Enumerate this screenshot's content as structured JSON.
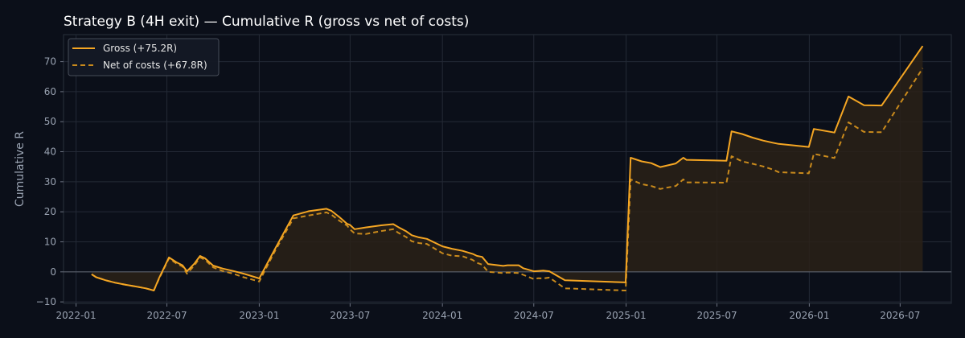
{
  "chart_data": {
    "type": "line",
    "title": "Strategy B (4H exit) — Cumulative R (gross vs net of costs)",
    "xlabel": "",
    "ylabel": "Cumulative R",
    "ylim": [
      -10.5,
      79
    ],
    "xlim": [
      "2021-12-07",
      "2026-10-11"
    ],
    "grid": true,
    "legend": "top-left",
    "yticks": [
      -10,
      0,
      10,
      20,
      30,
      40,
      50,
      60,
      70
    ],
    "xticks": [
      "2022-01",
      "2022-07",
      "2023-01",
      "2023-07",
      "2024-01",
      "2024-07",
      "2025-01",
      "2025-07",
      "2026-01",
      "2026-07"
    ],
    "colors": {
      "gross": "#f5a623",
      "net": "#c98a1c",
      "fill": "#2a2118",
      "zero_line": "#5a606c",
      "grid": "#242a36"
    },
    "series": [
      {
        "name": "Gross (+75.2R)",
        "style": "solid",
        "x": [
          "2022-02-01",
          "2022-02-10",
          "2022-03-01",
          "2022-03-20",
          "2022-04-10",
          "2022-05-01",
          "2022-05-20",
          "2022-06-05",
          "2022-06-15",
          "2022-07-05",
          "2022-07-20",
          "2022-08-01",
          "2022-08-10",
          "2022-08-25",
          "2022-09-05",
          "2022-09-15",
          "2022-10-01",
          "2022-10-20",
          "2022-11-10",
          "2022-12-01",
          "2023-01-01",
          "2023-02-01",
          "2023-03-10",
          "2023-04-10",
          "2023-05-15",
          "2023-05-25",
          "2023-06-10",
          "2023-06-25",
          "2023-07-01",
          "2023-07-10",
          "2023-08-01",
          "2023-09-01",
          "2023-09-25",
          "2023-10-05",
          "2023-10-20",
          "2023-11-01",
          "2023-11-15",
          "2023-12-01",
          "2024-01-01",
          "2024-01-20",
          "2024-02-10",
          "2024-03-01",
          "2024-03-10",
          "2024-03-20",
          "2024-04-01",
          "2024-05-01",
          "2024-05-10",
          "2024-06-01",
          "2024-06-10",
          "2024-07-01",
          "2024-07-10",
          "2024-07-20",
          "2024-08-01",
          "2024-09-01",
          "2024-12-31",
          "2025-01-10",
          "2025-02-01",
          "2025-02-20",
          "2025-03-10",
          "2025-04-10",
          "2025-04-25",
          "2025-05-01",
          "2025-07-20",
          "2025-07-30",
          "2025-08-20",
          "2025-09-10",
          "2025-10-01",
          "2025-10-20",
          "2025-11-01",
          "2025-12-31",
          "2026-01-10",
          "2026-02-20",
          "2026-03-20",
          "2026-04-20",
          "2026-05-25",
          "2026-08-15"
        ],
        "values": [
          -0.8,
          -1.8,
          -2.8,
          -3.6,
          -4.3,
          -4.9,
          -5.5,
          -6.2,
          -2.2,
          4.8,
          3.2,
          2.2,
          0.2,
          2.8,
          5.3,
          4.5,
          2.1,
          1.1,
          0.3,
          -0.6,
          -2.2,
          7.5,
          18.8,
          20.2,
          21.0,
          20.3,
          18.2,
          16.0,
          15.6,
          14.2,
          14.8,
          15.5,
          15.9,
          14.9,
          13.6,
          12.2,
          11.5,
          11.0,
          8.5,
          7.7,
          7.0,
          6.0,
          5.3,
          5.0,
          2.6,
          2.0,
          2.2,
          2.2,
          1.2,
          0.2,
          0.3,
          0.4,
          0.2,
          -2.8,
          -3.5,
          38.0,
          36.8,
          36.2,
          34.9,
          36.1,
          38.0,
          37.3,
          37.0,
          46.8,
          45.9,
          44.7,
          43.7,
          43.0,
          42.6,
          41.6,
          47.6,
          46.4,
          58.4,
          55.5,
          55.4,
          75.2
        ]
      },
      {
        "name": "Net of costs (+67.8R)",
        "style": "dashed",
        "x": [
          "2022-02-01",
          "2022-02-10",
          "2022-03-01",
          "2022-03-20",
          "2022-04-10",
          "2022-05-01",
          "2022-05-20",
          "2022-06-05",
          "2022-06-15",
          "2022-07-05",
          "2022-07-20",
          "2022-08-01",
          "2022-08-10",
          "2022-08-25",
          "2022-09-05",
          "2022-09-15",
          "2022-10-01",
          "2022-10-20",
          "2022-11-10",
          "2022-12-01",
          "2023-01-01",
          "2023-02-01",
          "2023-03-10",
          "2023-04-10",
          "2023-05-15",
          "2023-05-25",
          "2023-06-10",
          "2023-06-25",
          "2023-07-01",
          "2023-07-10",
          "2023-08-01",
          "2023-09-01",
          "2023-09-25",
          "2023-10-05",
          "2023-10-20",
          "2023-11-01",
          "2023-11-15",
          "2023-12-01",
          "2024-01-01",
          "2024-01-20",
          "2024-02-10",
          "2024-03-01",
          "2024-03-10",
          "2024-03-20",
          "2024-04-01",
          "2024-05-01",
          "2024-05-10",
          "2024-06-01",
          "2024-06-10",
          "2024-07-01",
          "2024-07-10",
          "2024-07-20",
          "2024-08-01",
          "2024-09-01",
          "2024-12-31",
          "2025-01-10",
          "2025-02-01",
          "2025-02-20",
          "2025-03-10",
          "2025-04-10",
          "2025-04-25",
          "2025-05-01",
          "2025-07-20",
          "2025-07-30",
          "2025-08-20",
          "2025-09-10",
          "2025-10-01",
          "2025-10-20",
          "2025-11-01",
          "2025-12-31",
          "2026-01-10",
          "2026-02-20",
          "2026-03-20",
          "2026-04-20",
          "2026-05-25",
          "2026-08-15"
        ],
        "values": [
          -0.8,
          -1.8,
          -2.8,
          -3.6,
          -4.3,
          -4.9,
          -5.5,
          -6.2,
          -2.4,
          4.5,
          2.8,
          1.8,
          -0.6,
          2.2,
          4.8,
          4.0,
          1.5,
          0.3,
          -0.6,
          -1.8,
          -3.2,
          6.8,
          17.8,
          18.8,
          19.8,
          19.0,
          17.0,
          15.4,
          14.1,
          12.8,
          12.6,
          13.6,
          14.2,
          13.0,
          11.7,
          10.2,
          9.6,
          9.3,
          6.2,
          5.4,
          5.2,
          4.0,
          3.0,
          2.4,
          0.0,
          -0.4,
          -0.2,
          -0.4,
          -1.0,
          -2.4,
          -2.1,
          -2.2,
          -1.9,
          -5.5,
          -6.2,
          30.8,
          29.2,
          28.6,
          27.6,
          28.6,
          30.8,
          29.8,
          29.7,
          38.5,
          36.8,
          36.0,
          35.1,
          34.1,
          33.2,
          32.8,
          39.3,
          37.9,
          49.8,
          46.6,
          46.5,
          67.8
        ]
      }
    ]
  }
}
